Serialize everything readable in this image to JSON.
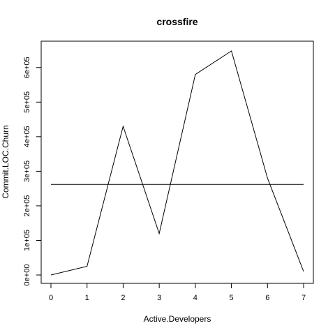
{
  "chart_data": {
    "type": "line",
    "title": "crossfire",
    "xlabel": "Active.Developers",
    "ylabel": "Commit.LOC.Churn",
    "xlim": [
      0,
      7
    ],
    "ylim": [
      0,
      650000
    ],
    "x_ticks": [
      0,
      1,
      2,
      3,
      4,
      5,
      6,
      7
    ],
    "x_tick_labels": [
      "0",
      "1",
      "2",
      "3",
      "4",
      "5",
      "6",
      "7"
    ],
    "y_ticks": [
      0,
      100000,
      200000,
      300000,
      400000,
      500000,
      600000
    ],
    "y_tick_labels": [
      "0e+00",
      "1e+05",
      "2e+05",
      "3e+05",
      "4e+05",
      "5e+05",
      "6e+05"
    ],
    "grid": false,
    "series": [
      {
        "x": [
          0,
          1,
          2,
          3,
          4,
          5,
          6,
          7
        ],
        "values": [
          0,
          25000,
          430000,
          120000,
          580000,
          648000,
          280000,
          10000
        ],
        "color": "#000000"
      },
      {
        "x": [
          0,
          7
        ],
        "values": [
          262000,
          262000
        ],
        "color": "#000000"
      }
    ]
  }
}
